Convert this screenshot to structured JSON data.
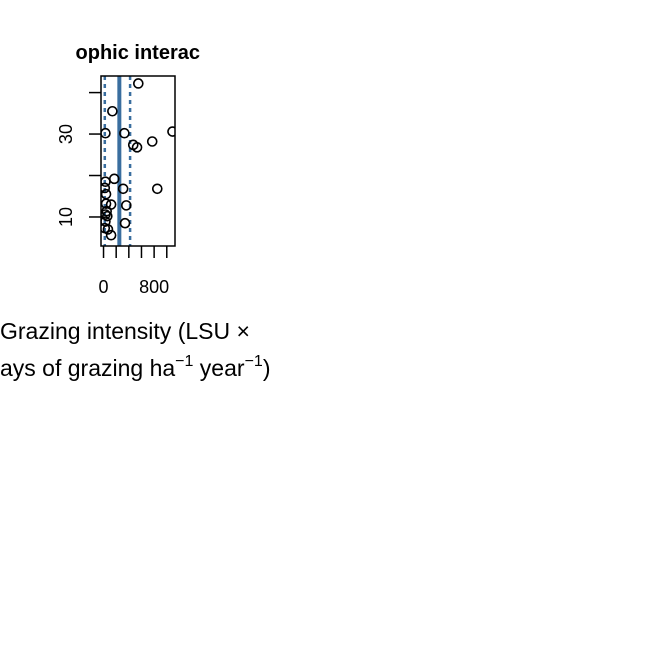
{
  "chart_data": {
    "type": "scatter",
    "title": "ophic interac",
    "xlabel_line1": "Grazing intensity (LSU ×",
    "xlabel_line2_pre": "ays of grazing ha",
    "xlabel_line2_sup1": "−1",
    "xlabel_line2_mid": " year",
    "xlabel_line2_sup2": "−1",
    "xlabel_line2_post": ")",
    "xlim": [
      -40,
      1130
    ],
    "ylim": [
      3,
      44
    ],
    "x_ticks": [
      0,
      200,
      400,
      600,
      800,
      1000
    ],
    "x_tick_labels": [
      "0",
      "800"
    ],
    "x_tick_label_values": [
      0,
      800
    ],
    "y_ticks": [
      10,
      20,
      30,
      40
    ],
    "y_tick_labels": [
      "10",
      "30"
    ],
    "y_tick_label_values": [
      10,
      30
    ],
    "grid": false,
    "point_color": "#000000",
    "line_color": "#3a6e9f",
    "vertical_line": 250,
    "dashed_lines": [
      20,
      420
    ],
    "points": [
      {
        "x": 550,
        "y": 42.2
      },
      {
        "x": 140,
        "y": 35.5
      },
      {
        "x": 30,
        "y": 30.2
      },
      {
        "x": 330,
        "y": 30.2
      },
      {
        "x": 1090,
        "y": 30.6
      },
      {
        "x": 770,
        "y": 28.2
      },
      {
        "x": 470,
        "y": 27.4
      },
      {
        "x": 530,
        "y": 26.8
      },
      {
        "x": 30,
        "y": 18.5
      },
      {
        "x": 170,
        "y": 19.2
      },
      {
        "x": 20,
        "y": 17.0
      },
      {
        "x": 310,
        "y": 16.8
      },
      {
        "x": 850,
        "y": 16.8
      },
      {
        "x": 40,
        "y": 15.5
      },
      {
        "x": 40,
        "y": 13.2
      },
      {
        "x": 120,
        "y": 13.0
      },
      {
        "x": 360,
        "y": 12.8
      },
      {
        "x": 50,
        "y": 11.4
      },
      {
        "x": 30,
        "y": 10.6
      },
      {
        "x": 60,
        "y": 10.2
      },
      {
        "x": 30,
        "y": 8.9
      },
      {
        "x": 340,
        "y": 8.5
      },
      {
        "x": 20,
        "y": 7.3
      },
      {
        "x": 70,
        "y": 7.0
      },
      {
        "x": 120,
        "y": 5.6
      }
    ]
  }
}
